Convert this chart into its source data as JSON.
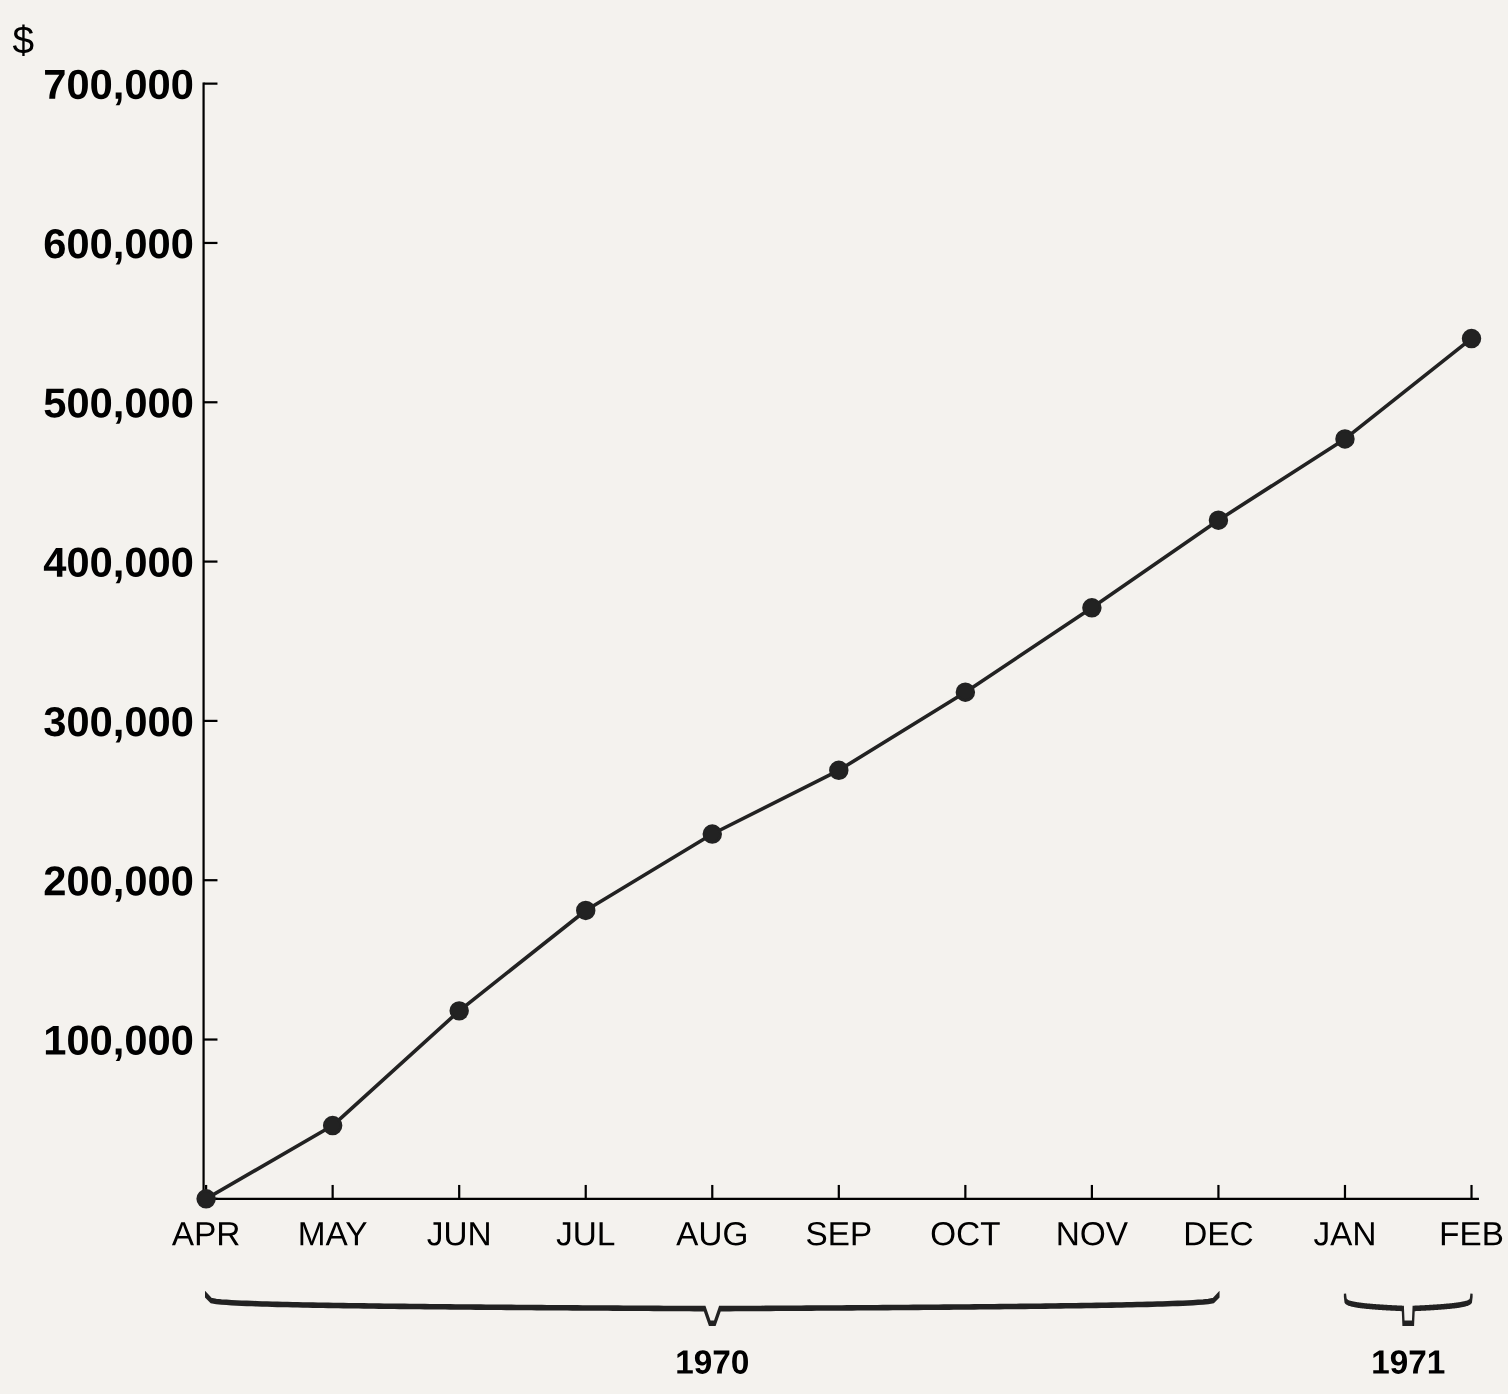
{
  "chart_data": {
    "type": "line",
    "ylabel": "$",
    "categories": [
      "APR",
      "MAY",
      "JUN",
      "JUL",
      "AUG",
      "SEP",
      "OCT",
      "NOV",
      "DEC",
      "JAN",
      "FEB"
    ],
    "values": [
      0,
      46000,
      118000,
      181000,
      229000,
      269000,
      318000,
      371000,
      426000,
      477000,
      540000
    ],
    "color": "#222222",
    "marker": "circle",
    "line_style": "solid",
    "grid": false,
    "ylim": [
      0,
      700000
    ],
    "yticks": [
      {
        "value": 0,
        "label": null
      },
      {
        "value": 100000,
        "label": "100,000"
      },
      {
        "value": 200000,
        "label": "200,000"
      },
      {
        "value": 300000,
        "label": "300,000"
      },
      {
        "value": 400000,
        "label": "400,000"
      },
      {
        "value": 500000,
        "label": "500,000"
      },
      {
        "value": 600000,
        "label": "600,000"
      },
      {
        "value": 700000,
        "label": "700,000"
      }
    ],
    "annotations": [
      "1970",
      "1971"
    ]
  }
}
